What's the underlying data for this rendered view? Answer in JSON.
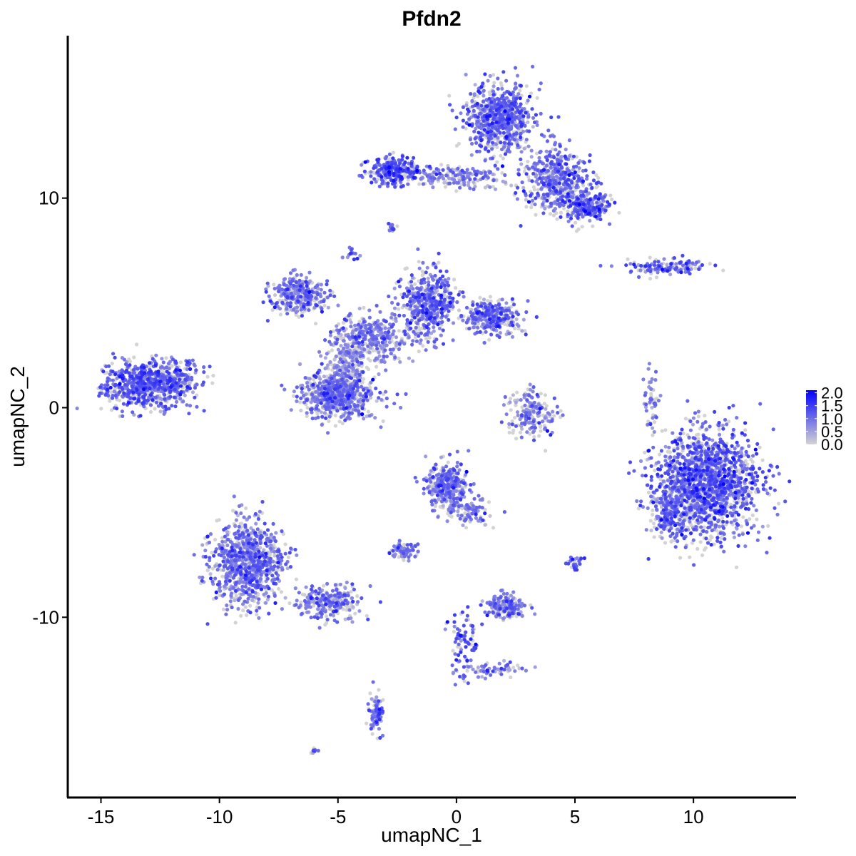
{
  "chart_data": {
    "type": "scatter",
    "title": "Pfdn2",
    "xlabel": "umapNC_1",
    "ylabel": "umapNC_2",
    "xlim": [
      -16.4,
      14.3
    ],
    "ylim": [
      -18.6,
      17.75
    ],
    "xticks": [
      -15,
      -10,
      -5,
      0,
      5,
      10
    ],
    "yticks": [
      -10,
      0,
      10
    ],
    "grid": false,
    "color_scale": {
      "low": "#D3D3D3",
      "high": "#0000FF",
      "min": 0,
      "max": 2.1
    },
    "legend": {
      "position": "right",
      "labels": [
        "2.0",
        "1.5",
        "1.0",
        "0.5",
        "0.0"
      ],
      "values": [
        2.0,
        1.5,
        1.0,
        0.5,
        0.0
      ]
    },
    "clusters": [
      {
        "center": [
          -13.1,
          1.05
        ],
        "sd": [
          0.9,
          0.6
        ],
        "n": 650,
        "mean_expr": 1.1
      },
      {
        "center": [
          -11.6,
          1.6
        ],
        "sd": [
          0.5,
          0.4
        ],
        "n": 80,
        "mean_expr": 1.0
      },
      {
        "center": [
          1.8,
          13.8
        ],
        "sd": [
          0.7,
          0.85
        ],
        "n": 700,
        "mean_expr": 1.0
      },
      {
        "center": [
          4.3,
          10.9
        ],
        "sd": [
          0.7,
          0.8
        ],
        "n": 450,
        "mean_expr": 1.0
      },
      {
        "center": [
          5.5,
          9.6
        ],
        "sd": [
          0.5,
          0.4
        ],
        "n": 200,
        "mean_expr": 1.1
      },
      {
        "center": [
          -2.6,
          11.3
        ],
        "sd": [
          0.55,
          0.35
        ],
        "n": 250,
        "mean_expr": 1.2
      },
      {
        "center": [
          0.2,
          11.0
        ],
        "sd": [
          1.0,
          0.25
        ],
        "n": 180,
        "mean_expr": 0.8
      },
      {
        "center": [
          -5.0,
          0.6
        ],
        "sd": [
          0.8,
          0.6
        ],
        "n": 650,
        "mean_expr": 0.9
      },
      {
        "center": [
          -6.6,
          5.4
        ],
        "sd": [
          0.6,
          0.45
        ],
        "n": 300,
        "mean_expr": 0.9
      },
      {
        "center": [
          -1.2,
          5.0
        ],
        "sd": [
          0.55,
          0.85
        ],
        "n": 450,
        "mean_expr": 1.0
      },
      {
        "center": [
          1.5,
          4.3
        ],
        "sd": [
          0.6,
          0.4
        ],
        "n": 300,
        "mean_expr": 1.0
      },
      {
        "center": [
          -3.6,
          3.3
        ],
        "sd": [
          0.9,
          0.6
        ],
        "n": 350,
        "mean_expr": 0.8
      },
      {
        "center": [
          -4.6,
          2.2
        ],
        "sd": [
          0.4,
          0.6
        ],
        "n": 150,
        "mean_expr": 0.6
      },
      {
        "center": [
          10.6,
          -3.6
        ],
        "sd": [
          1.1,
          1.3
        ],
        "n": 1500,
        "mean_expr": 1.1
      },
      {
        "center": [
          9.0,
          -5.0
        ],
        "sd": [
          0.4,
          0.7
        ],
        "n": 200,
        "mean_expr": 1.0
      },
      {
        "center": [
          -8.8,
          -7.4
        ],
        "sd": [
          0.75,
          1.05
        ],
        "n": 850,
        "mean_expr": 0.9
      },
      {
        "center": [
          -5.4,
          -9.3
        ],
        "sd": [
          0.7,
          0.4
        ],
        "n": 250,
        "mean_expr": 0.9
      },
      {
        "center": [
          -0.4,
          -3.8
        ],
        "sd": [
          0.45,
          0.6
        ],
        "n": 330,
        "mean_expr": 0.9
      },
      {
        "center": [
          0.6,
          -5.0
        ],
        "sd": [
          0.4,
          0.35
        ],
        "n": 80,
        "mean_expr": 0.9
      },
      {
        "center": [
          3.2,
          -0.2
        ],
        "sd": [
          0.5,
          0.6
        ],
        "n": 180,
        "mean_expr": 0.8
      },
      {
        "center": [
          2.1,
          -9.5
        ],
        "sd": [
          0.45,
          0.3
        ],
        "n": 170,
        "mean_expr": 0.9
      },
      {
        "center": [
          -2.2,
          -6.8
        ],
        "sd": [
          0.3,
          0.2
        ],
        "n": 70,
        "mean_expr": 0.9
      },
      {
        "center": [
          -3.4,
          -14.6
        ],
        "sd": [
          0.15,
          0.5
        ],
        "n": 80,
        "mean_expr": 1.0
      },
      {
        "center": [
          8.8,
          6.7
        ],
        "sd": [
          0.9,
          0.2
        ],
        "n": 130,
        "mean_expr": 1.0
      },
      {
        "center": [
          8.2,
          0.3
        ],
        "sd": [
          0.15,
          0.8
        ],
        "n": 50,
        "mean_expr": 0.9
      },
      {
        "center": [
          0.3,
          -11.3
        ],
        "sd": [
          0.3,
          0.9
        ],
        "n": 80,
        "mean_expr": 1.1
      },
      {
        "center": [
          1.6,
          -12.5
        ],
        "sd": [
          0.7,
          0.2
        ],
        "n": 60,
        "mean_expr": 0.9
      },
      {
        "center": [
          5.0,
          -7.3
        ],
        "sd": [
          0.15,
          0.2
        ],
        "n": 25,
        "mean_expr": 1.3
      },
      {
        "center": [
          -2.7,
          8.6
        ],
        "sd": [
          0.12,
          0.12
        ],
        "n": 15,
        "mean_expr": 1.0
      },
      {
        "center": [
          -4.4,
          7.3
        ],
        "sd": [
          0.15,
          0.2
        ],
        "n": 15,
        "mean_expr": 1.1
      },
      {
        "center": [
          -6.0,
          -16.4
        ],
        "sd": [
          0.1,
          0.06
        ],
        "n": 8,
        "mean_expr": 1.0
      }
    ]
  }
}
